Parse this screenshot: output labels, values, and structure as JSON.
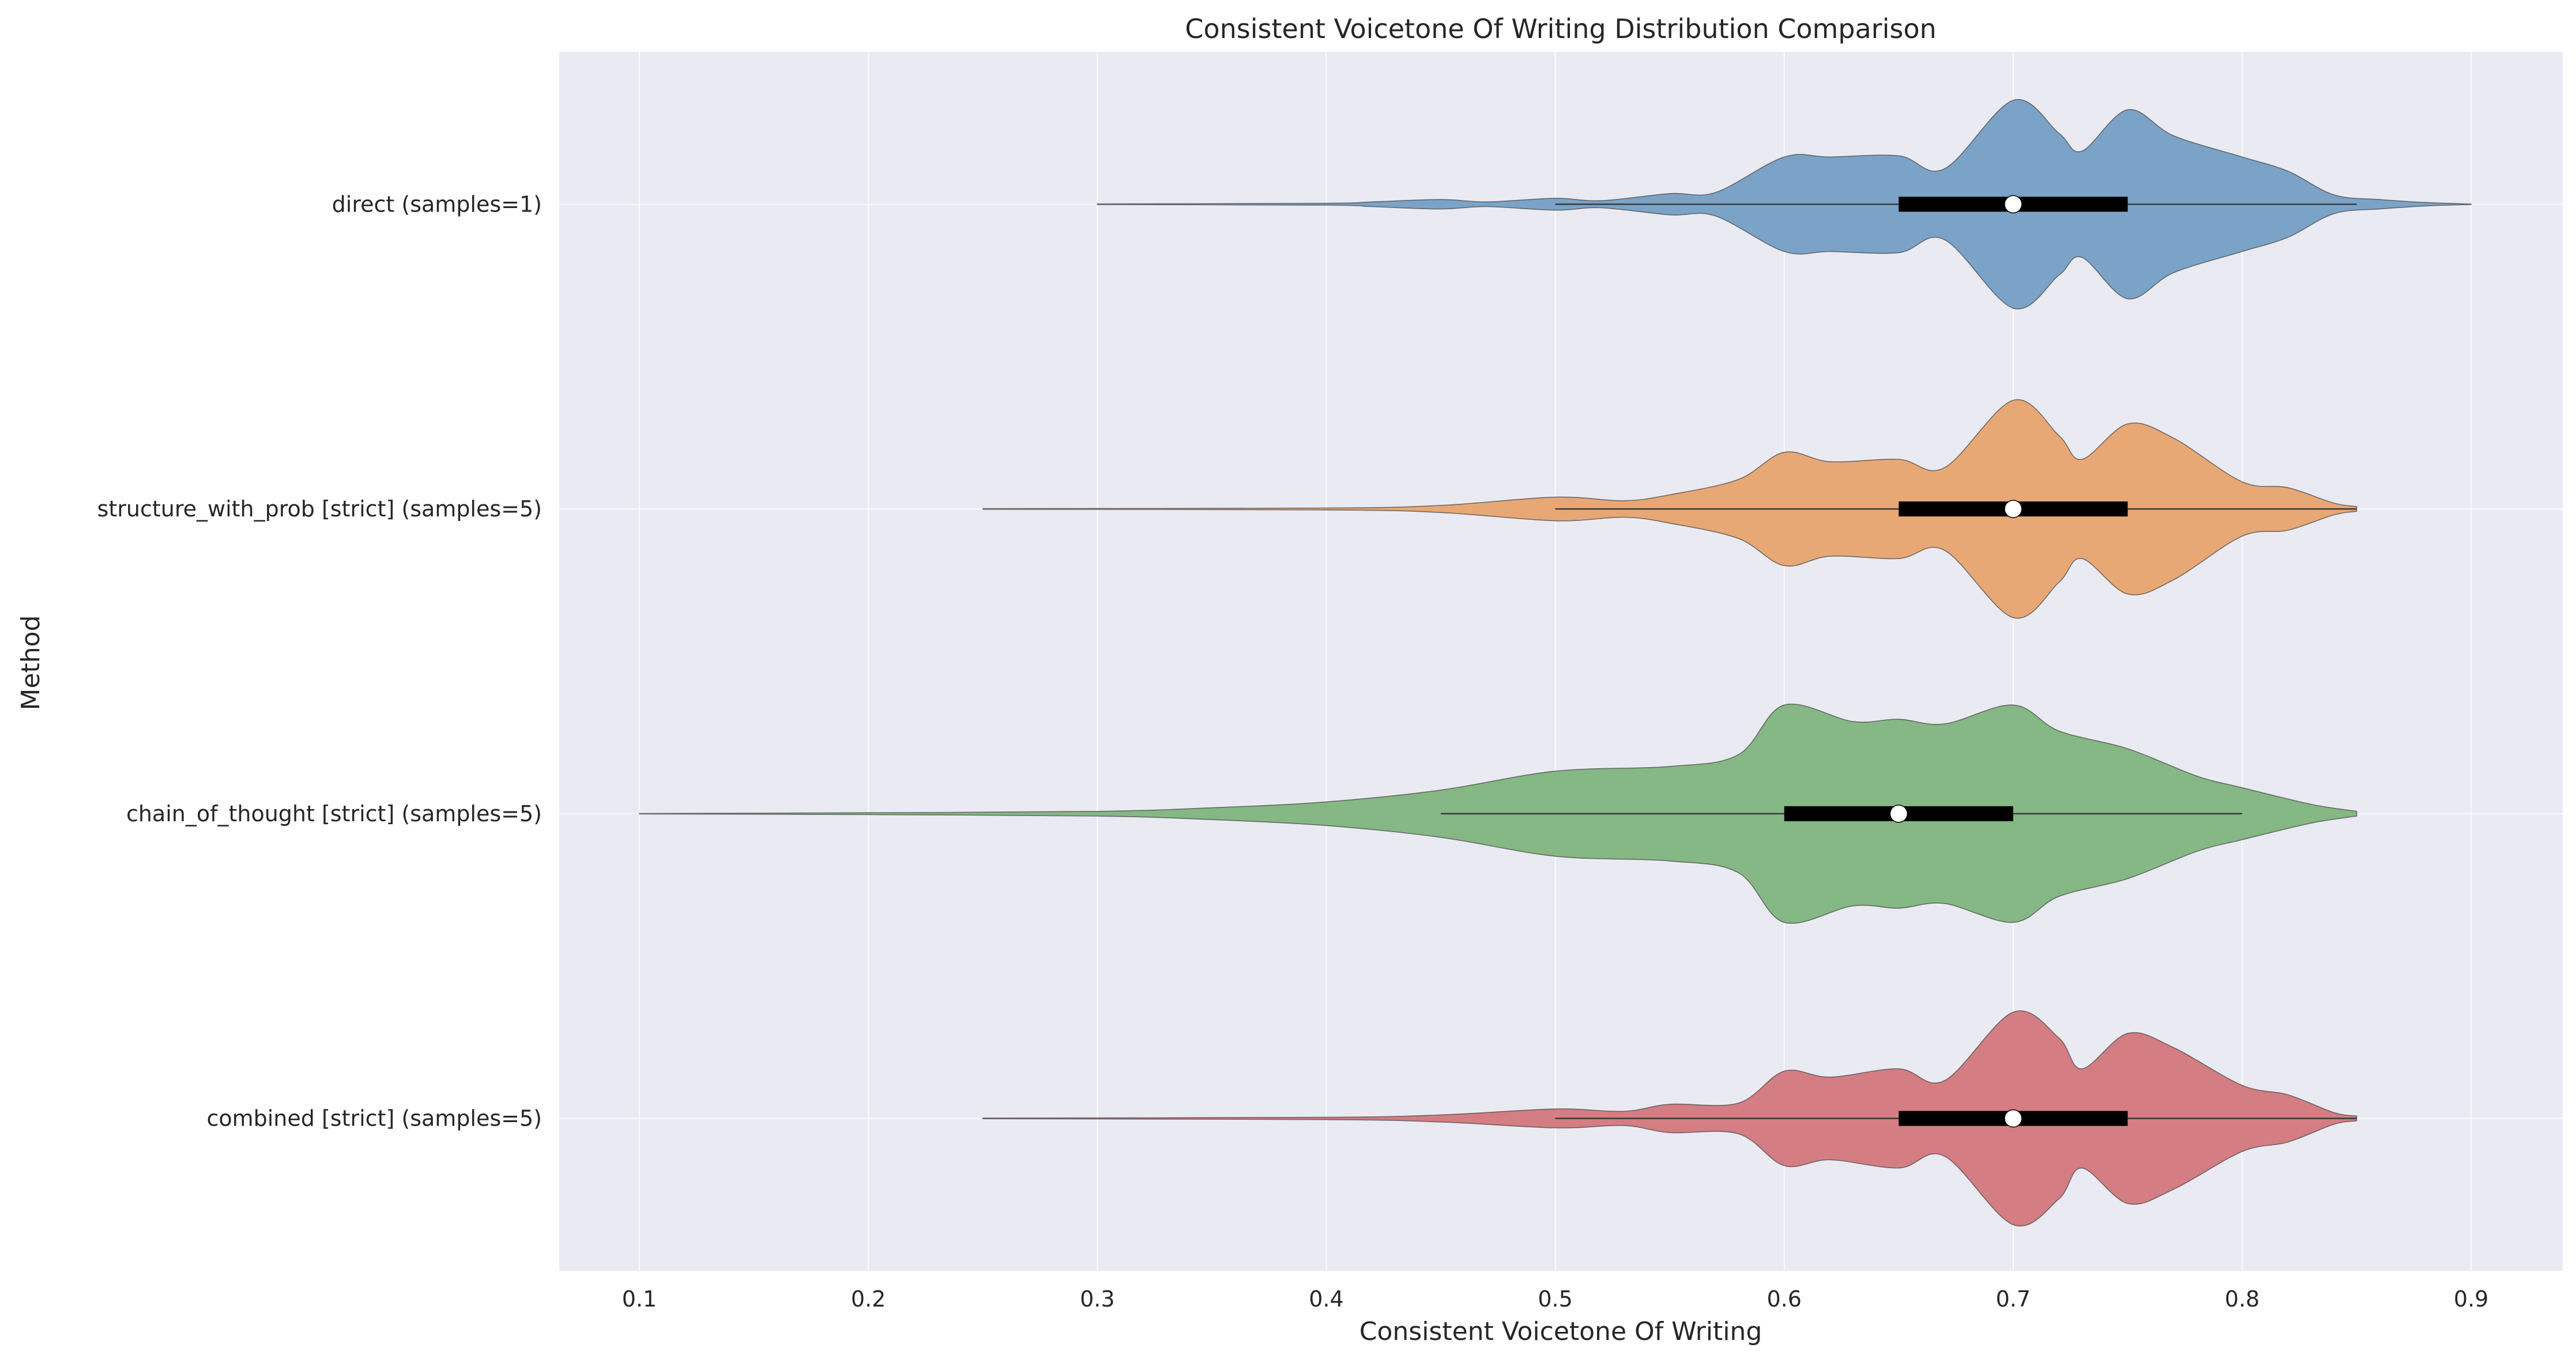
{
  "chart_data": {
    "type": "violin",
    "orientation": "horizontal",
    "title": "Consistent Voicetone Of Writing Distribution Comparison",
    "xlabel": "Consistent Voicetone Of Writing",
    "ylabel": "Method",
    "xlim": [
      0.065,
      0.94
    ],
    "x_ticks": [
      0.1,
      0.2,
      0.3,
      0.4,
      0.5,
      0.6,
      0.7,
      0.8,
      0.9
    ],
    "x_tick_labels": [
      "0.1",
      "0.2",
      "0.3",
      "0.4",
      "0.5",
      "0.6",
      "0.7",
      "0.8",
      "0.9"
    ],
    "grid": true,
    "background": "#eaeaf2",
    "series": [
      {
        "name": "direct (samples=1)",
        "color": "#7ba3c8",
        "range": [
          0.3,
          0.9
        ],
        "whisker": [
          0.5,
          0.85
        ],
        "q1": 0.65,
        "median": 0.7,
        "q3": 0.75,
        "density": [
          [
            0.3,
            0.003
          ],
          [
            0.4,
            0.008
          ],
          [
            0.42,
            0.02
          ],
          [
            0.45,
            0.04
          ],
          [
            0.47,
            0.02
          ],
          [
            0.5,
            0.05
          ],
          [
            0.52,
            0.03
          ],
          [
            0.55,
            0.09
          ],
          [
            0.57,
            0.1
          ],
          [
            0.6,
            0.4
          ],
          [
            0.62,
            0.4
          ],
          [
            0.65,
            0.41
          ],
          [
            0.67,
            0.3
          ],
          [
            0.7,
            0.88
          ],
          [
            0.72,
            0.6
          ],
          [
            0.73,
            0.45
          ],
          [
            0.75,
            0.8
          ],
          [
            0.77,
            0.58
          ],
          [
            0.8,
            0.4
          ],
          [
            0.82,
            0.28
          ],
          [
            0.84,
            0.08
          ],
          [
            0.86,
            0.04
          ],
          [
            0.88,
            0.015
          ],
          [
            0.9,
            0.002
          ]
        ]
      },
      {
        "name": "structure_with_prob [strict] (samples=5)",
        "color": "#e8a875",
        "range": [
          0.25,
          0.85
        ],
        "whisker": [
          0.5,
          0.85
        ],
        "q1": 0.65,
        "median": 0.7,
        "q3": 0.75,
        "density": [
          [
            0.25,
            0.003
          ],
          [
            0.4,
            0.008
          ],
          [
            0.45,
            0.03
          ],
          [
            0.5,
            0.1
          ],
          [
            0.53,
            0.07
          ],
          [
            0.55,
            0.12
          ],
          [
            0.58,
            0.25
          ],
          [
            0.6,
            0.48
          ],
          [
            0.62,
            0.4
          ],
          [
            0.65,
            0.42
          ],
          [
            0.67,
            0.35
          ],
          [
            0.7,
            0.92
          ],
          [
            0.72,
            0.62
          ],
          [
            0.73,
            0.42
          ],
          [
            0.75,
            0.72
          ],
          [
            0.77,
            0.6
          ],
          [
            0.8,
            0.23
          ],
          [
            0.82,
            0.18
          ],
          [
            0.84,
            0.05
          ],
          [
            0.85,
            0.02
          ]
        ]
      },
      {
        "name": "chain_of_thought [strict] (samples=5)",
        "color": "#85b884",
        "range": [
          0.1,
          0.85
        ],
        "whisker": [
          0.45,
          0.8
        ],
        "q1": 0.6,
        "median": 0.65,
        "q3": 0.7,
        "density": [
          [
            0.1,
            0.002
          ],
          [
            0.2,
            0.008
          ],
          [
            0.3,
            0.02
          ],
          [
            0.35,
            0.05
          ],
          [
            0.4,
            0.1
          ],
          [
            0.45,
            0.2
          ],
          [
            0.5,
            0.36
          ],
          [
            0.55,
            0.4
          ],
          [
            0.58,
            0.5
          ],
          [
            0.6,
            0.92
          ],
          [
            0.63,
            0.78
          ],
          [
            0.65,
            0.8
          ],
          [
            0.67,
            0.76
          ],
          [
            0.7,
            0.92
          ],
          [
            0.72,
            0.7
          ],
          [
            0.75,
            0.55
          ],
          [
            0.78,
            0.32
          ],
          [
            0.8,
            0.22
          ],
          [
            0.83,
            0.08
          ],
          [
            0.85,
            0.02
          ]
        ]
      },
      {
        "name": "combined [strict] (samples=5)",
        "color": "#d47d82",
        "range": [
          0.25,
          0.85
        ],
        "whisker": [
          0.5,
          0.85
        ],
        "q1": 0.65,
        "median": 0.7,
        "q3": 0.75,
        "density": [
          [
            0.25,
            0.003
          ],
          [
            0.4,
            0.01
          ],
          [
            0.45,
            0.03
          ],
          [
            0.5,
            0.08
          ],
          [
            0.53,
            0.06
          ],
          [
            0.55,
            0.12
          ],
          [
            0.58,
            0.13
          ],
          [
            0.6,
            0.4
          ],
          [
            0.62,
            0.35
          ],
          [
            0.65,
            0.42
          ],
          [
            0.67,
            0.32
          ],
          [
            0.7,
            0.9
          ],
          [
            0.72,
            0.68
          ],
          [
            0.73,
            0.42
          ],
          [
            0.75,
            0.72
          ],
          [
            0.77,
            0.6
          ],
          [
            0.8,
            0.28
          ],
          [
            0.82,
            0.2
          ],
          [
            0.84,
            0.05
          ],
          [
            0.85,
            0.02
          ]
        ]
      }
    ]
  }
}
